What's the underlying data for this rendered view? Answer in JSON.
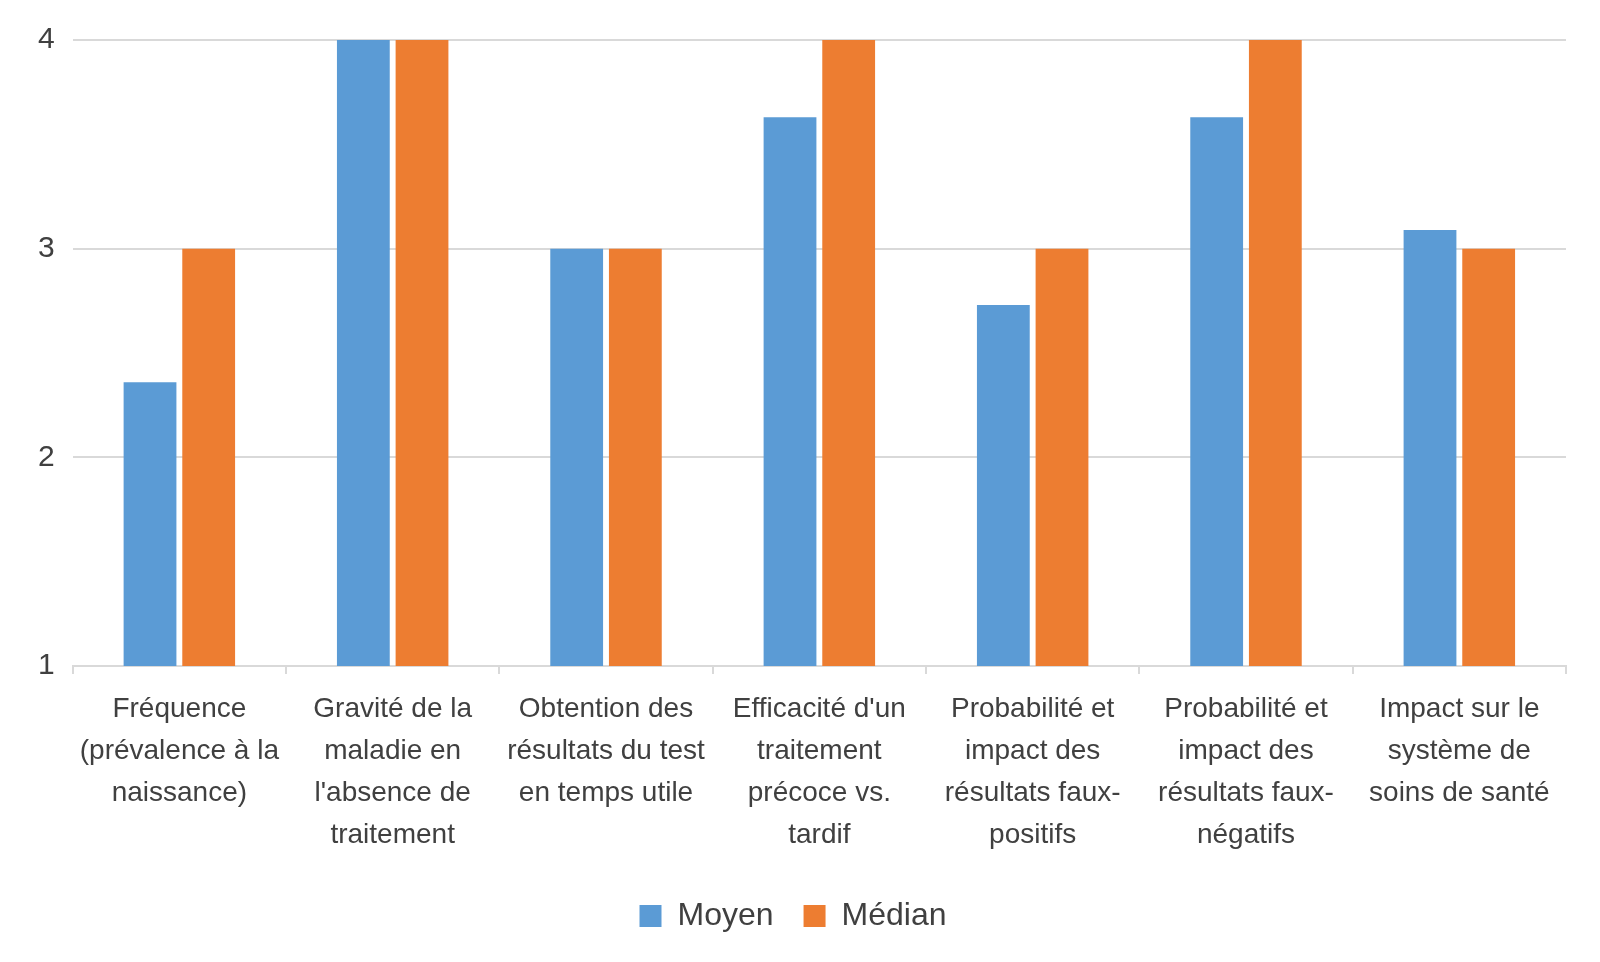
{
  "chart_data": {
    "type": "bar",
    "categories": [
      "Fréquence (prévalence à la naissance)",
      "Gravité de la maladie en l'absence de traitement",
      "Obtention des résultats du test en temps utile",
      "Efficacité d'un traitement précoce vs. tardif",
      "Probabilité et impact des résultats faux-positifs",
      "Probabilité et impact des résultats faux-négatifs",
      "Impact sur le système de soins de santé"
    ],
    "series": [
      {
        "name": "Moyen",
        "color": "#5b9bd5",
        "values": [
          2.36,
          4,
          3,
          3.63,
          2.73,
          3.63,
          3.09
        ]
      },
      {
        "name": "Médian",
        "color": "#ed7d31",
        "values": [
          3,
          4,
          3,
          4,
          3,
          4,
          3
        ]
      }
    ],
    "ylim": [
      1,
      4
    ],
    "yticks": [
      1,
      2,
      3,
      4
    ],
    "grid": "y",
    "legend": "bottom"
  }
}
